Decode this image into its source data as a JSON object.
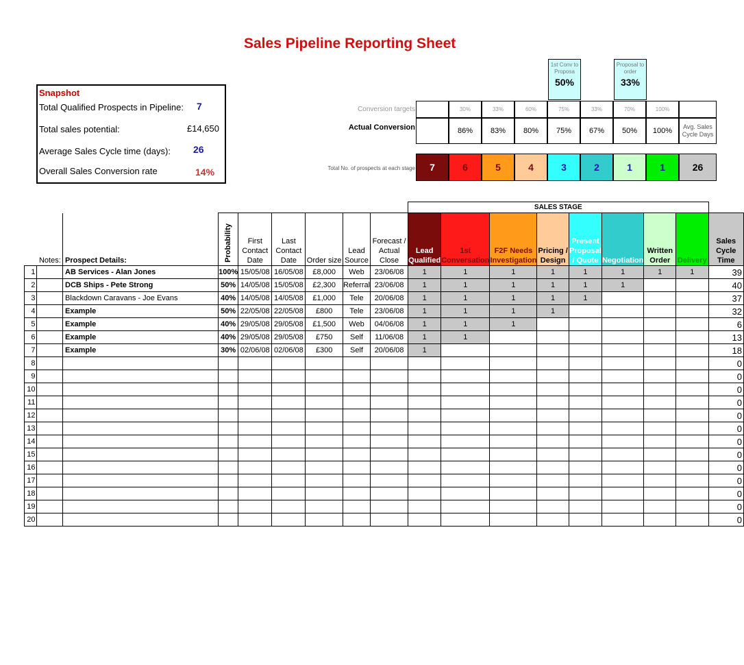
{
  "title": "Sales Pipeline Reporting Sheet",
  "snapshot": {
    "header": "Snapshot",
    "rows": [
      {
        "label": "Total Qualified Prospects in Pipeline:",
        "value": "7"
      },
      {
        "label": "Total sales potential:",
        "value": "£14,650"
      },
      {
        "label": "Average Sales Cycle time (days):",
        "value": "26"
      },
      {
        "label": "Overall Sales Conversion rate",
        "value": "14%"
      }
    ]
  },
  "conversion_boxes": [
    {
      "label": "1st Conv to Proposa",
      "pct": "50%"
    },
    {
      "label": "Proposal to order",
      "pct": "33%"
    }
  ],
  "conversion_targets": {
    "label": "Conversion targets",
    "values": [
      "30%",
      "33%",
      "60%",
      "75%",
      "33%",
      "70%",
      "100%"
    ]
  },
  "actual_conversion": {
    "label": "Actual Conversion",
    "values": [
      "86%",
      "83%",
      "80%",
      "75%",
      "67%",
      "50%",
      "100%"
    ],
    "avg_label": "Avg. Sales Cycle Days"
  },
  "prospect_counts": {
    "label": "Total No. of prospects at each stage",
    "values": [
      "7",
      "6",
      "5",
      "4",
      "3",
      "2",
      "1",
      "1"
    ],
    "avg": "26"
  },
  "stage_colors": [
    "#7b0c0c",
    "#ff1a1a",
    "#ff9a1a",
    "#ffcc99",
    "#33ffff",
    "#33cccc",
    "#ccffcc",
    "#00ee00"
  ],
  "sales_stage_title": "SALES STAGE",
  "columns": {
    "notes": "Notes:",
    "prospect": "Prospect Details:",
    "probability": "Probability",
    "first_contact": "First Contact Date",
    "last_contact": "Last Contact Date",
    "order_size": "Order size",
    "lead_source": "Lead Source",
    "forecast": "Forecast / Actual Close",
    "stages": [
      "Lead Qualified",
      "1st Conversation",
      "F2F Needs Investigation",
      "Pricing / Design",
      "Present Proposal / Quote",
      "Negotiation",
      "Written Order",
      "Delivery"
    ],
    "cycle": "Sales Cycle Time"
  },
  "rows": [
    {
      "n": "1",
      "prospect": "AB Services - Alan Jones",
      "prob": "100%",
      "first": "15/05/08",
      "last": "16/05/08",
      "size": "£8,000",
      "source": "Web",
      "close": "23/06/08",
      "stages": [
        "1",
        "1",
        "1",
        "1",
        "1",
        "1",
        "1",
        "1"
      ],
      "cycle": "39"
    },
    {
      "n": "2",
      "prospect": "DCB Ships - Pete Strong",
      "prob": "50%",
      "first": "14/05/08",
      "last": "15/05/08",
      "size": "£2,300",
      "source": "Referral",
      "close": "23/06/08",
      "stages": [
        "1",
        "1",
        "1",
        "1",
        "1",
        "1"
      ],
      "cycle": "40"
    },
    {
      "n": "3",
      "prospect": "Blackdown Caravans - Joe Evans",
      "prob": "40%",
      "first": "14/05/08",
      "last": "14/05/08",
      "size": "£1,000",
      "source": "Tele",
      "close": "20/06/08",
      "stages": [
        "1",
        "1",
        "1",
        "1",
        "1"
      ],
      "cycle": "37"
    },
    {
      "n": "4",
      "prospect": "Example",
      "prob": "50%",
      "first": "22/05/08",
      "last": "22/05/08",
      "size": "£800",
      "source": "Tele",
      "close": "23/06/08",
      "stages": [
        "1",
        "1",
        "1",
        "1"
      ],
      "cycle": "32"
    },
    {
      "n": "5",
      "prospect": "Example",
      "prob": "40%",
      "first": "29/05/08",
      "last": "29/05/08",
      "size": "£1,500",
      "source": "Web",
      "close": "04/06/08",
      "stages": [
        "1",
        "1",
        "1"
      ],
      "cycle": "6"
    },
    {
      "n": "6",
      "prospect": "Example",
      "prob": "40%",
      "first": "29/05/08",
      "last": "29/05/08",
      "size": "£750",
      "source": "Self",
      "close": "11/06/08",
      "stages": [
        "1",
        "1"
      ],
      "cycle": "13"
    },
    {
      "n": "7",
      "prospect": "Example",
      "prob": "30%",
      "first": "02/06/08",
      "last": "02/06/08",
      "size": "£300",
      "source": "Self",
      "close": "20/06/08",
      "stages": [
        "1"
      ],
      "cycle": "18"
    },
    {
      "n": "8",
      "prospect": "",
      "prob": "",
      "first": "",
      "last": "",
      "size": "",
      "source": "",
      "close": "",
      "stages": [],
      "cycle": "0"
    },
    {
      "n": "9",
      "prospect": "",
      "prob": "",
      "first": "",
      "last": "",
      "size": "",
      "source": "",
      "close": "",
      "stages": [],
      "cycle": "0"
    },
    {
      "n": "10",
      "prospect": "",
      "prob": "",
      "first": "",
      "last": "",
      "size": "",
      "source": "",
      "close": "",
      "stages": [],
      "cycle": "0"
    },
    {
      "n": "11",
      "prospect": "",
      "prob": "",
      "first": "",
      "last": "",
      "size": "",
      "source": "",
      "close": "",
      "stages": [],
      "cycle": "0"
    },
    {
      "n": "12",
      "prospect": "",
      "prob": "",
      "first": "",
      "last": "",
      "size": "",
      "source": "",
      "close": "",
      "stages": [],
      "cycle": "0"
    },
    {
      "n": "13",
      "prospect": "",
      "prob": "",
      "first": "",
      "last": "",
      "size": "",
      "source": "",
      "close": "",
      "stages": [],
      "cycle": "0"
    },
    {
      "n": "14",
      "prospect": "",
      "prob": "",
      "first": "",
      "last": "",
      "size": "",
      "source": "",
      "close": "",
      "stages": [],
      "cycle": "0"
    },
    {
      "n": "15",
      "prospect": "",
      "prob": "",
      "first": "",
      "last": "",
      "size": "",
      "source": "",
      "close": "",
      "stages": [],
      "cycle": "0"
    },
    {
      "n": "16",
      "prospect": "",
      "prob": "",
      "first": "",
      "last": "",
      "size": "",
      "source": "",
      "close": "",
      "stages": [],
      "cycle": "0"
    },
    {
      "n": "17",
      "prospect": "",
      "prob": "",
      "first": "",
      "last": "",
      "size": "",
      "source": "",
      "close": "",
      "stages": [],
      "cycle": "0"
    },
    {
      "n": "18",
      "prospect": "",
      "prob": "",
      "first": "",
      "last": "",
      "size": "",
      "source": "",
      "close": "",
      "stages": [],
      "cycle": "0"
    },
    {
      "n": "19",
      "prospect": "",
      "prob": "",
      "first": "",
      "last": "",
      "size": "",
      "source": "",
      "close": "",
      "stages": [],
      "cycle": "0"
    },
    {
      "n": "20",
      "prospect": "",
      "prob": "",
      "first": "",
      "last": "",
      "size": "",
      "source": "",
      "close": "",
      "stages": [],
      "cycle": "0"
    }
  ]
}
